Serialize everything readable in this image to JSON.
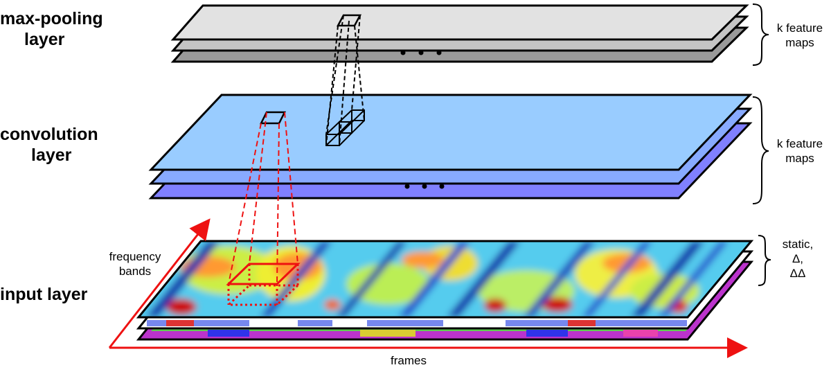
{
  "layers": {
    "maxpool": {
      "line1": "max-pooling",
      "line2": "layer",
      "annotation_line1": "k feature",
      "annotation_line2": "maps"
    },
    "convolution": {
      "line1": "convolution",
      "line2": "layer",
      "annotation_line1": "k feature",
      "annotation_line2": "maps"
    },
    "input": {
      "label": "input layer",
      "annotation_line1": "static,",
      "annotation_line2": "Δ,",
      "annotation_line3": "ΔΔ"
    }
  },
  "axes": {
    "frequency_line1": "frequency",
    "frequency_line2": "bands",
    "frames": "frames"
  },
  "colors": {
    "maxpool_top": "#e2e2e2",
    "maxpool_mid": "#c4c4c4",
    "maxpool_bottom": "#9a9a9a",
    "conv_top": "#99ccff",
    "conv_mid": "#88aaff",
    "conv_bottom": "#8080ff",
    "receptive_field": "#ee1111",
    "outline": "#000000"
  }
}
